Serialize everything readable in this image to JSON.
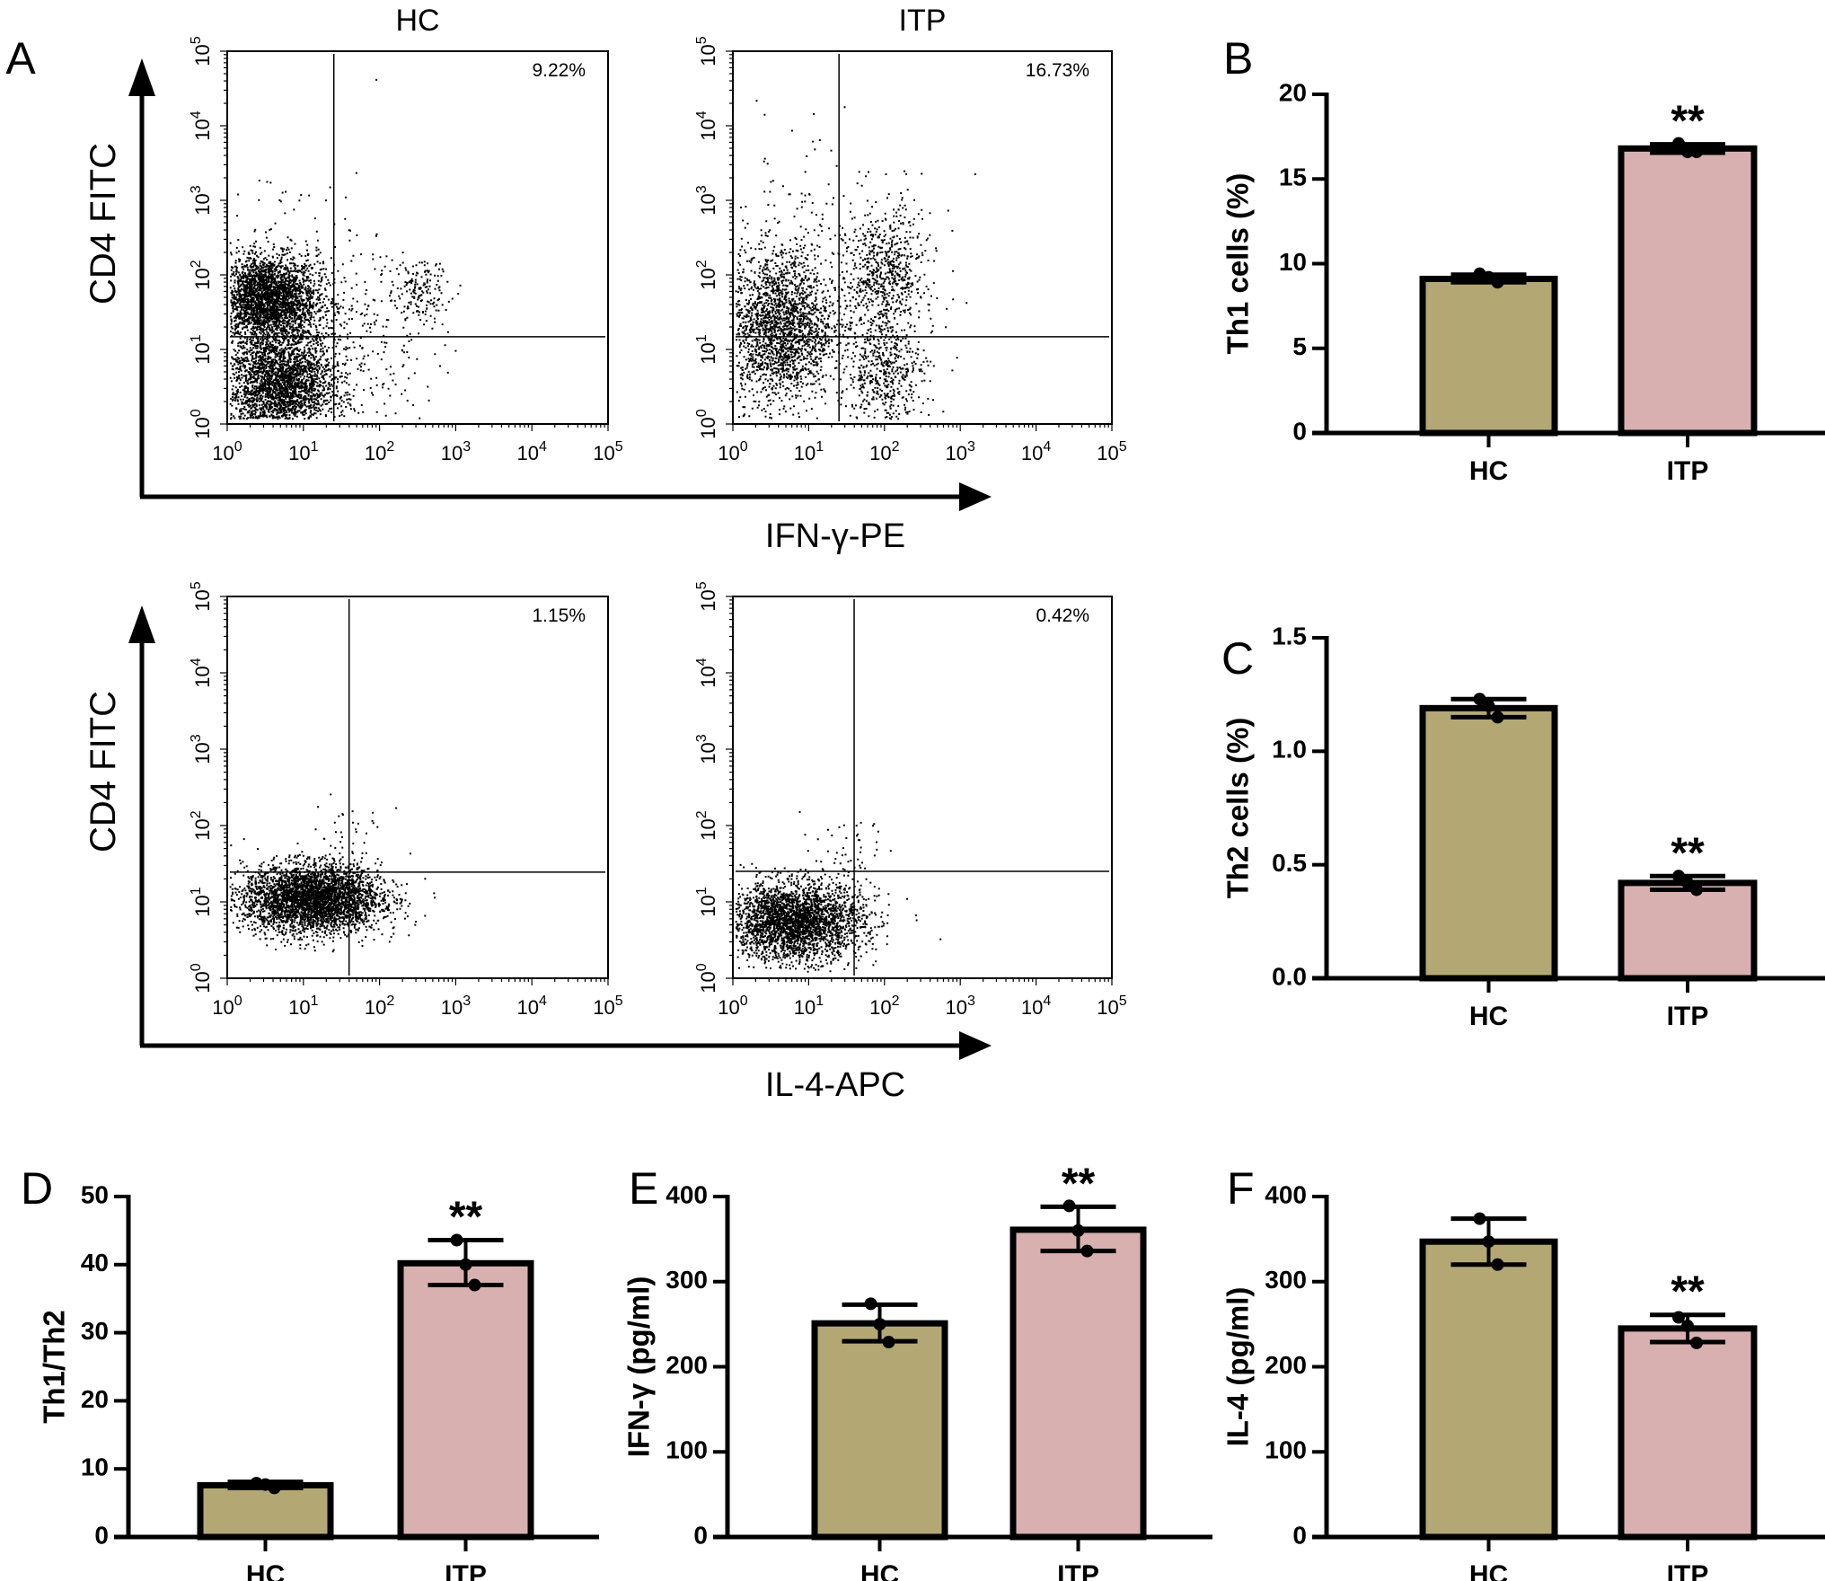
{
  "colors": {
    "HC": "#b3a874",
    "ITP": "#d8b0b0",
    "stroke": "#000000"
  },
  "flow": {
    "panel_label": "A",
    "row1": {
      "y_title": "CD4 FITC",
      "x_title": "IFN-γ-PE",
      "plots": [
        {
          "title": "HC",
          "percent": "9.22%",
          "gate_log": [
            1.4,
            1.17
          ]
        },
        {
          "title": "ITP",
          "percent": "16.73%",
          "gate_log": [
            1.4,
            1.17
          ]
        }
      ]
    },
    "row2": {
      "y_title": "CD4 FITC",
      "x_title": "IL-4-APC",
      "plots": [
        {
          "percent": "1.15%",
          "gate_log": [
            1.6,
            1.39
          ]
        },
        {
          "percent": "0.42%",
          "gate_log": [
            1.6,
            1.4
          ]
        }
      ]
    },
    "tick_base": "10",
    "tick_exponents": [
      "0",
      "1",
      "2",
      "3",
      "4",
      "5"
    ],
    "axis_scale": "log",
    "axis_range": [
      1,
      100000
    ]
  },
  "chart_data": [
    {
      "id": "B",
      "panel_label": "B",
      "type": "bar",
      "ylabel": "Th1 cells (%)",
      "ylim": [
        0,
        20
      ],
      "yticks": [
        "0",
        "5",
        "10",
        "15",
        "20"
      ],
      "categories": [
        "HC",
        "ITP"
      ],
      "values": [
        9.1,
        16.8
      ],
      "error": [
        [
          8.9,
          9.35
        ],
        [
          16.55,
          17.05
        ]
      ],
      "points": [
        [
          9.4,
          9.2,
          8.9
        ],
        [
          17.1,
          16.6,
          16.6
        ]
      ],
      "significance": [
        "",
        "**"
      ]
    },
    {
      "id": "C",
      "panel_label": "C",
      "type": "bar",
      "ylabel": "Th2 cells (%)",
      "ylim": [
        0,
        1.5
      ],
      "yticks": [
        "0.0",
        "0.5",
        "1.0",
        "1.5"
      ],
      "categories": [
        "HC",
        "ITP"
      ],
      "values": [
        1.19,
        0.42
      ],
      "error": [
        [
          1.15,
          1.23
        ],
        [
          0.39,
          0.45
        ]
      ],
      "points": [
        [
          1.23,
          1.2,
          1.15
        ],
        [
          0.45,
          0.42,
          0.39
        ]
      ],
      "significance": [
        "",
        "**"
      ]
    },
    {
      "id": "D",
      "panel_label": "D",
      "type": "bar",
      "ylabel": "Th1/Th2",
      "ylim": [
        0,
        50
      ],
      "yticks": [
        "0",
        "10",
        "20",
        "30",
        "40",
        "50"
      ],
      "categories": [
        "HC",
        "ITP"
      ],
      "values": [
        7.6,
        40.2
      ],
      "error": [
        [
          7.2,
          8.1
        ],
        [
          37.0,
          43.6
        ]
      ],
      "points": [
        [
          7.9,
          7.7,
          7.2
        ],
        [
          43.6,
          40.0,
          37.0
        ]
      ],
      "significance": [
        "",
        "**"
      ]
    },
    {
      "id": "E",
      "panel_label": "E",
      "type": "bar",
      "ylabel": "IFN-γ (pg/ml)",
      "ylim": [
        0,
        400
      ],
      "yticks": [
        "0",
        "100",
        "200",
        "300",
        "400"
      ],
      "categories": [
        "HC",
        "ITP"
      ],
      "values": [
        251,
        361
      ],
      "error": [
        [
          230,
          273
        ],
        [
          336,
          388
        ]
      ],
      "points": [
        [
          274,
          250,
          229
        ],
        [
          389,
          360,
          336
        ]
      ],
      "significance": [
        "",
        "**"
      ]
    },
    {
      "id": "F",
      "panel_label": "F",
      "type": "bar",
      "ylabel": "IL-4 (pg/ml)",
      "ylim": [
        0,
        400
      ],
      "yticks": [
        "0",
        "100",
        "200",
        "300",
        "400"
      ],
      "categories": [
        "HC",
        "ITP"
      ],
      "values": [
        347,
        245
      ],
      "error": [
        [
          320,
          374
        ],
        [
          229,
          261
        ]
      ],
      "points": [
        [
          374,
          347,
          320
        ],
        [
          258,
          248,
          228
        ]
      ],
      "significance": [
        "",
        "**"
      ]
    }
  ]
}
